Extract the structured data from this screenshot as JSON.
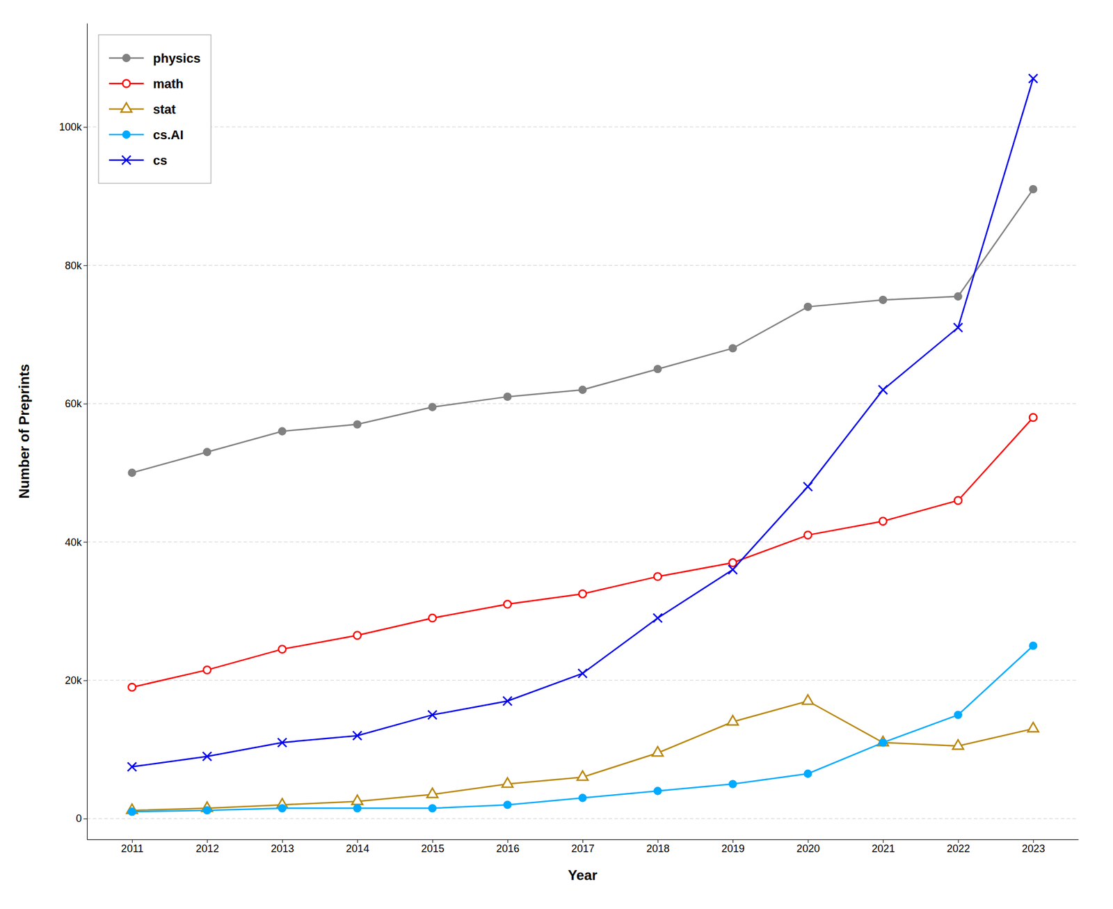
{
  "chart_data": {
    "type": "line",
    "xlabel": "Year",
    "ylabel": "Number of Preprints",
    "x": [
      2011,
      2012,
      2013,
      2014,
      2015,
      2016,
      2017,
      2018,
      2019,
      2020,
      2021,
      2022,
      2023
    ],
    "series": [
      {
        "name": "physics",
        "color": "#808080",
        "marker": "circle",
        "values": [
          50000,
          53000,
          56000,
          57000,
          59500,
          61000,
          62000,
          65000,
          68000,
          74000,
          75000,
          75500,
          91000
        ]
      },
      {
        "name": "math",
        "color": "#ff0000",
        "marker": "circle-open",
        "values": [
          19000,
          21500,
          24500,
          26500,
          29000,
          31000,
          32500,
          35000,
          37000,
          41000,
          43000,
          46000,
          58000
        ]
      },
      {
        "name": "stat",
        "color": "#b8860b",
        "marker": "triangle-open",
        "values": [
          1200,
          1500,
          2000,
          2500,
          3500,
          5000,
          6000,
          9500,
          14000,
          17000,
          11000,
          10500,
          13000
        ]
      },
      {
        "name": "cs.AI",
        "color": "#00aaff",
        "marker": "circle",
        "values": [
          1000,
          1200,
          1500,
          1500,
          1500,
          2000,
          3000,
          4000,
          5000,
          6500,
          11000,
          15000,
          25000
        ]
      },
      {
        "name": "cs",
        "color": "#0000ee",
        "marker": "x",
        "values": [
          7500,
          9000,
          11000,
          12000,
          15000,
          17000,
          21000,
          29000,
          36000,
          48000,
          62000,
          71000,
          107000
        ]
      }
    ],
    "xlim": [
      2010.4,
      2023.6
    ],
    "xticks": [
      2011,
      2012,
      2013,
      2014,
      2015,
      2016,
      2017,
      2018,
      2019,
      2020,
      2021,
      2022,
      2023
    ],
    "ylim": [
      -3000,
      115000
    ],
    "yticks": [
      0,
      {
        "value": 20000,
        "label": "20k"
      },
      {
        "value": 40000,
        "label": "40k"
      },
      {
        "value": 60000,
        "label": "60k"
      },
      {
        "value": 80000,
        "label": "80k"
      },
      {
        "value": 100000,
        "label": "100k"
      }
    ],
    "grid": "y",
    "legend": "upper left"
  }
}
